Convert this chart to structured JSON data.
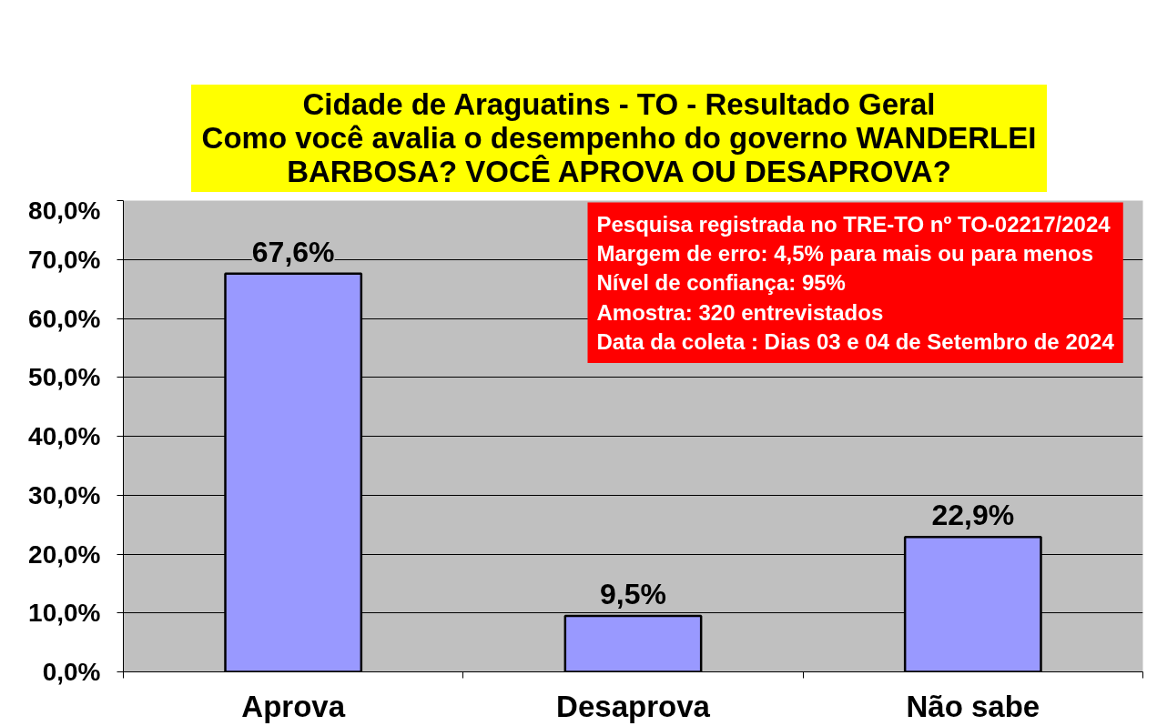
{
  "chart_data": {
    "type": "bar",
    "title": "Cidade de Araguatins - TO - Resultado Geral",
    "subtitle": "Como você avalia o desempenho do governo WANDERLEI BARBOSA? VOCÊ APROVA OU DESAPROVA?",
    "categories": [
      "Aprova",
      "Desaprova",
      "Não sabe"
    ],
    "values": [
      67.6,
      9.5,
      22.9
    ],
    "color": "#9999ff",
    "value_labels": [
      "67,6%",
      "9,5%",
      "22,9%"
    ],
    "ylim": [
      0,
      80
    ],
    "yticks": [
      {
        "value": 0,
        "label": "0,0%"
      },
      {
        "value": 10,
        "label": "10,0%"
      },
      {
        "value": 20,
        "label": "20,0%"
      },
      {
        "value": 30,
        "label": "30,0%"
      },
      {
        "value": 40,
        "label": "40,0%"
      },
      {
        "value": 50,
        "label": "50,0%"
      },
      {
        "value": 60,
        "label": "60,0%"
      },
      {
        "value": 70,
        "label": "70,0%"
      },
      {
        "value": 80,
        "label": "80,0%"
      }
    ],
    "grid": "y",
    "annotations": [
      "Pesquisa registrada no TRE-TO nº TO-02217/2024",
      "Margem de erro: 4,5% para mais ou para menos",
      "Nível de confiança: 95%",
      "Amostra: 320 entrevistados",
      "Data da coleta : Dias 03 e 04 de Setembro de 2024"
    ]
  }
}
